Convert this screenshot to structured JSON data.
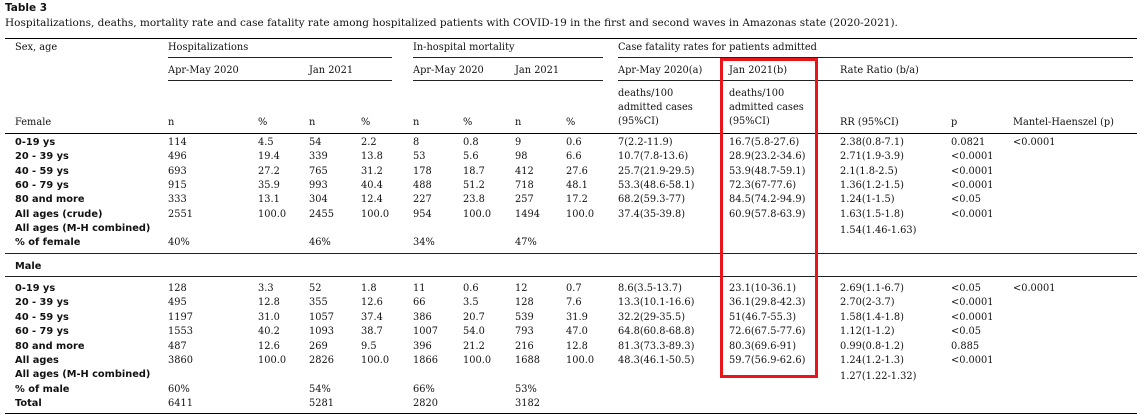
{
  "table": {
    "label": "Table 3",
    "title": "Hospitalizations, deaths, mortality rate and case fatality rate among hospitalized patients with COVID-19 in the first and second waves in Amazonas state (2020-2021).",
    "headers": {
      "sex_age": "Sex, age",
      "hospitalizations": "Hospitalizations",
      "in_hospital_mortality": "In-hospital mortality",
      "case_fatality": "Case fatality rates for patients admitted",
      "apr_may_2020": "Apr-May 2020",
      "jan_2021": "Jan 2021",
      "apr_may_2020_a": "Apr-May 2020(a)",
      "jan_2021_b": "Jan 2021(b)",
      "rate_ratio": "Rate Ratio (b/a)",
      "female": "Female",
      "n": "n",
      "pct": "%",
      "deaths_line1": "deaths/100",
      "deaths_line2": "admitted cases",
      "deaths_line3": "(95%CI)",
      "rr": "RR (95%CI)",
      "p": "p",
      "mh": "Mantel-Haenszel (p)"
    },
    "female_rows": [
      {
        "label": "0-19 ys",
        "h20n": "114",
        "h20p": "4.5",
        "h21n": "54",
        "h21p": "2.2",
        "m20n": "8",
        "m20p": "0.8",
        "m21n": "9",
        "m21p": "0.6",
        "cfa": "7(2.2-11.9)",
        "cfb": "16.7(5.8-27.6)",
        "rr": "2.38(0.8-7.1)",
        "p": "0.0821",
        "mh": "<0.0001"
      },
      {
        "label": "20 - 39 ys",
        "h20n": "496",
        "h20p": "19.4",
        "h21n": "339",
        "h21p": "13.8",
        "m20n": "53",
        "m20p": "5.6",
        "m21n": "98",
        "m21p": "6.6",
        "cfa": "10.7(7.8-13.6)",
        "cfb": "28.9(23.2-34.6)",
        "rr": "2.71(1.9-3.9)",
        "p": "<0.0001",
        "mh": ""
      },
      {
        "label": "40 - 59 ys",
        "h20n": "693",
        "h20p": "27.2",
        "h21n": "765",
        "h21p": "31.2",
        "m20n": "178",
        "m20p": "18.7",
        "m21n": "412",
        "m21p": "27.6",
        "cfa": "25.7(21.9-29.5)",
        "cfb": "53.9(48.7-59.1)",
        "rr": "2.1(1.8-2.5)",
        "p": "<0.0001",
        "mh": ""
      },
      {
        "label": "60 - 79 ys",
        "h20n": "915",
        "h20p": "35.9",
        "h21n": "993",
        "h21p": "40.4",
        "m20n": "488",
        "m20p": "51.2",
        "m21n": "718",
        "m21p": "48.1",
        "cfa": "53.3(48.6-58.1)",
        "cfb": "72.3(67-77.6)",
        "rr": "1.36(1.2-1.5)",
        "p": "<0.0001",
        "mh": ""
      },
      {
        "label": "80 and more",
        "h20n": "333",
        "h20p": "13.1",
        "h21n": "304",
        "h21p": "12.4",
        "m20n": "227",
        "m20p": "23.8",
        "m21n": "257",
        "m21p": "17.2",
        "cfa": "68.2(59.3-77)",
        "cfb": "84.5(74.2-94.9)",
        "rr": "1.24(1-1.5)",
        "p": "<0.05",
        "mh": ""
      },
      {
        "label": "All ages (crude)",
        "h20n": "2551",
        "h20p": "100.0",
        "h21n": "2455",
        "h21p": "100.0",
        "m20n": "954",
        "m20p": "100.0",
        "m21n": "1494",
        "m21p": "100.0",
        "cfa": "37.4(35-39.8)",
        "cfb": "60.9(57.8-63.9)",
        "rr": "1.63(1.5-1.8)",
        "p": "<0.0001",
        "mh": ""
      },
      {
        "label": "All ages (M-H combined)",
        "h20n": "",
        "h20p": "",
        "h21n": "",
        "h21p": "",
        "m20n": "",
        "m20p": "",
        "m21n": "",
        "m21p": "",
        "cfa": "",
        "cfb": "",
        "rr": "1.54(1.46-1.63)",
        "p": "",
        "mh": ""
      },
      {
        "label": "% of female",
        "h20n": "40%",
        "h20p": "",
        "h21n": "46%",
        "h21p": "",
        "m20n": "34%",
        "m20p": "",
        "m21n": "47%",
        "m21p": "",
        "cfa": "",
        "cfb": "",
        "rr": "",
        "p": "",
        "mh": ""
      }
    ],
    "male_label": "Male",
    "male_rows": [
      {
        "label": "0-19 ys",
        "h20n": "128",
        "h20p": "3.3",
        "h21n": "52",
        "h21p": "1.8",
        "m20n": "11",
        "m20p": "0.6",
        "m21n": "12",
        "m21p": "0.7",
        "cfa": "8.6(3.5-13.7)",
        "cfb": "23.1(10-36.1)",
        "rr": "2.69(1.1-6.7)",
        "p": "<0.05",
        "mh": "<0.0001"
      },
      {
        "label": "20 - 39 ys",
        "h20n": "495",
        "h20p": "12.8",
        "h21n": "355",
        "h21p": "12.6",
        "m20n": "66",
        "m20p": "3.5",
        "m21n": "128",
        "m21p": "7.6",
        "cfa": "13.3(10.1-16.6)",
        "cfb": "36.1(29.8-42.3)",
        "rr": "2.70(2-3.7)",
        "p": "<0.0001",
        "mh": ""
      },
      {
        "label": "40 - 59 ys",
        "h20n": "1197",
        "h20p": "31.0",
        "h21n": "1057",
        "h21p": "37.4",
        "m20n": "386",
        "m20p": "20.7",
        "m21n": "539",
        "m21p": "31.9",
        "cfa": "32.2(29-35.5)",
        "cfb": "51(46.7-55.3)",
        "rr": "1.58(1.4-1.8)",
        "p": "<0.0001",
        "mh": ""
      },
      {
        "label": "60 - 79 ys",
        "h20n": "1553",
        "h20p": "40.2",
        "h21n": "1093",
        "h21p": "38.7",
        "m20n": "1007",
        "m20p": "54.0",
        "m21n": "793",
        "m21p": "47.0",
        "cfa": "64.8(60.8-68.8)",
        "cfb": "72.6(67.5-77.6)",
        "rr": "1.12(1-1.2)",
        "p": "<0.05",
        "mh": ""
      },
      {
        "label": "80 and more",
        "h20n": "487",
        "h20p": "12.6",
        "h21n": "269",
        "h21p": "9.5",
        "m20n": "396",
        "m20p": "21.2",
        "m21n": "216",
        "m21p": "12.8",
        "cfa": "81.3(73.3-89.3)",
        "cfb": "80.3(69.6-91)",
        "rr": "0.99(0.8-1.2)",
        "p": "0.885",
        "mh": ""
      },
      {
        "label": "All ages",
        "h20n": "3860",
        "h20p": "100.0",
        "h21n": "2826",
        "h21p": "100.0",
        "m20n": "1866",
        "m20p": "100.0",
        "m21n": "1688",
        "m21p": "100.0",
        "cfa": "48.3(46.1-50.5)",
        "cfb": "59.7(56.9-62.6)",
        "rr": "1.24(1.2-1.3)",
        "p": "<0.0001",
        "mh": ""
      },
      {
        "label": "All ages (M-H combined)",
        "h20n": "",
        "h20p": "",
        "h21n": "",
        "h21p": "",
        "m20n": "",
        "m20p": "",
        "m21n": "",
        "m21p": "",
        "cfa": "",
        "cfb": "",
        "rr": "1.27(1.22-1.32)",
        "p": "",
        "mh": ""
      },
      {
        "label": "% of male",
        "h20n": "60%",
        "h20p": "",
        "h21n": "54%",
        "h21p": "",
        "m20n": "66%",
        "m20p": "",
        "m21n": "53%",
        "m21p": "",
        "cfa": "",
        "cfb": "",
        "rr": "",
        "p": "",
        "mh": ""
      },
      {
        "label": "Total",
        "h20n": "6411",
        "h20p": "",
        "h21n": "5281",
        "h21p": "",
        "m20n": "2820",
        "m20p": "",
        "m21n": "3182",
        "m21p": "",
        "cfa": "",
        "cfb": "",
        "rr": "",
        "p": "",
        "mh": ""
      }
    ],
    "highlight_color": "#e8151b"
  }
}
